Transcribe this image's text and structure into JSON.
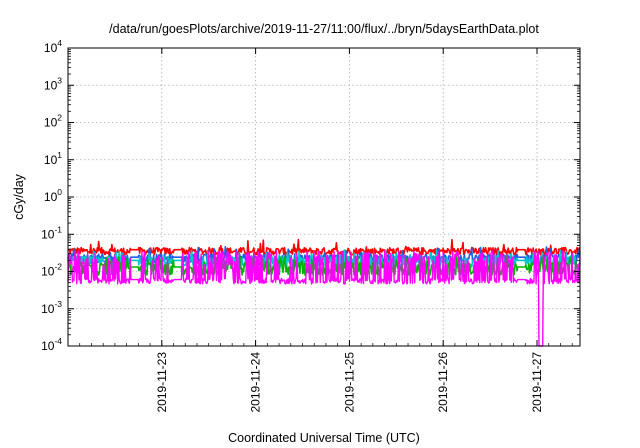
{
  "chart_data": {
    "type": "line",
    "title": "/data/run/goesPlots/archive/2019-11-27/11:00/flux/../bryn/5daysEarthData.plot",
    "xlabel": "Coordinated Universal Time (UTC)",
    "ylabel": "cGy/day",
    "yscale": "log",
    "ylim": [
      0.0001,
      10000
    ],
    "y_ticks": [
      {
        "base": "10",
        "exp": "-4",
        "value": 0.0001
      },
      {
        "base": "10",
        "exp": "-3",
        "value": 0.001
      },
      {
        "base": "10",
        "exp": "-2",
        "value": 0.01
      },
      {
        "base": "10",
        "exp": "-1",
        "value": 0.1
      },
      {
        "base": "10",
        "exp": "0",
        "value": 1
      },
      {
        "base": "10",
        "exp": "1",
        "value": 10
      },
      {
        "base": "10",
        "exp": "2",
        "value": 100
      },
      {
        "base": "10",
        "exp": "3",
        "value": 1000
      },
      {
        "base": "10",
        "exp": "4",
        "value": 10000
      }
    ],
    "xlim": [
      "2019-11-22T00:00",
      "2019-11-27T11:00"
    ],
    "x_ticks": [
      "2019-11-23",
      "2019-11-24",
      "2019-11-25",
      "2019-11-26",
      "2019-11-27"
    ],
    "grid": true,
    "gaps": [
      "2019-11-22T17:00",
      "2019-11-23T04:00",
      "2019-11-26T20:00"
    ],
    "dropout": {
      "x": "2019-11-27T01:00",
      "y_min": 0.0001
    },
    "series": [
      {
        "color": "#ff0000",
        "base": 0.035,
        "spread": 0.2,
        "spike_prob": 0.02
      },
      {
        "color": "#1f5fe0",
        "base": 0.022,
        "spread": 0.25,
        "spike_prob": 0.05
      },
      {
        "color": "#00c8c8",
        "base": 0.018,
        "spread": 0.3,
        "spike_prob": 0.1
      },
      {
        "color": "#00b400",
        "base": 0.012,
        "spread": 0.35,
        "spike_prob": 0.12
      },
      {
        "color": "#ff00ff",
        "base": 0.0055,
        "spread": 0.15,
        "spike_prob": 0.35
      }
    ]
  }
}
